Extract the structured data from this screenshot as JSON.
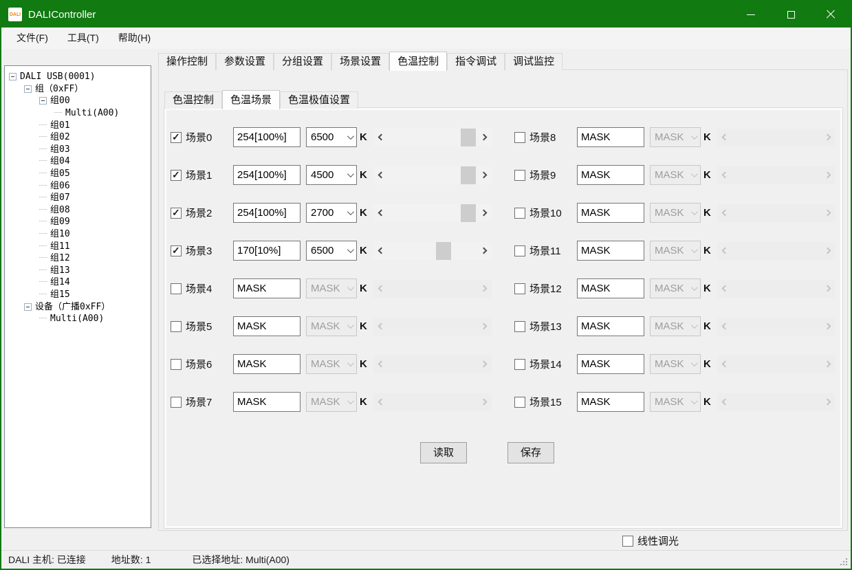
{
  "window": {
    "title": "DALIController",
    "logo_text": "DALI",
    "accent_color": "#117a11"
  },
  "menu": {
    "items": [
      "文件(F)",
      "工具(T)",
      "帮助(H)"
    ]
  },
  "tree": {
    "items": [
      {
        "label": "DALI USB(0001)",
        "depth": 0,
        "expander": true
      },
      {
        "label": "组（0xFF）",
        "depth": 1,
        "expander": true
      },
      {
        "label": "组00",
        "depth": 2,
        "expander": true
      },
      {
        "label": "Multi(A00)",
        "depth": 3,
        "expander": false
      },
      {
        "label": "组01",
        "depth": 2,
        "expander": false
      },
      {
        "label": "组02",
        "depth": 2,
        "expander": false
      },
      {
        "label": "组03",
        "depth": 2,
        "expander": false
      },
      {
        "label": "组04",
        "depth": 2,
        "expander": false
      },
      {
        "label": "组05",
        "depth": 2,
        "expander": false
      },
      {
        "label": "组06",
        "depth": 2,
        "expander": false
      },
      {
        "label": "组07",
        "depth": 2,
        "expander": false
      },
      {
        "label": "组08",
        "depth": 2,
        "expander": false
      },
      {
        "label": "组09",
        "depth": 2,
        "expander": false
      },
      {
        "label": "组10",
        "depth": 2,
        "expander": false
      },
      {
        "label": "组11",
        "depth": 2,
        "expander": false
      },
      {
        "label": "组12",
        "depth": 2,
        "expander": false
      },
      {
        "label": "组13",
        "depth": 2,
        "expander": false
      },
      {
        "label": "组14",
        "depth": 2,
        "expander": false
      },
      {
        "label": "组15",
        "depth": 2,
        "expander": false
      },
      {
        "label": "设备（广播0xFF）",
        "depth": 1,
        "expander": true
      },
      {
        "label": "Multi(A00)",
        "depth": 2,
        "expander": false
      }
    ]
  },
  "tabs": {
    "items": [
      "操作控制",
      "参数设置",
      "分组设置",
      "场景设置",
      "色温控制",
      "指令调试",
      "调试监控"
    ],
    "selected": "色温控制"
  },
  "subtabs": {
    "items": [
      "色温控制",
      "色温场景",
      "色温极值设置"
    ],
    "selected": "色温场景"
  },
  "scene_panel": {
    "kelvin_unit": "K",
    "left": [
      {
        "label": "场景0",
        "checked": true,
        "level": "254[100%]",
        "kelvin": "6500",
        "enabled": true,
        "thumb_pct": 74
      },
      {
        "label": "场景1",
        "checked": true,
        "level": "254[100%]",
        "kelvin": "4500",
        "enabled": true,
        "thumb_pct": 74
      },
      {
        "label": "场景2",
        "checked": true,
        "level": "254[100%]",
        "kelvin": "2700",
        "enabled": true,
        "thumb_pct": 74
      },
      {
        "label": "场景3",
        "checked": true,
        "level": "170[10%]",
        "kelvin": "6500",
        "enabled": true,
        "thumb_pct": 53
      },
      {
        "label": "场景4",
        "checked": false,
        "level": "MASK",
        "kelvin": "MASK",
        "enabled": false
      },
      {
        "label": "场景5",
        "checked": false,
        "level": "MASK",
        "kelvin": "MASK",
        "enabled": false
      },
      {
        "label": "场景6",
        "checked": false,
        "level": "MASK",
        "kelvin": "MASK",
        "enabled": false
      },
      {
        "label": "场景7",
        "checked": false,
        "level": "MASK",
        "kelvin": "MASK",
        "enabled": false
      }
    ],
    "right": [
      {
        "label": "场景8",
        "checked": false,
        "level": "MASK",
        "kelvin": "MASK",
        "enabled": false
      },
      {
        "label": "场景9",
        "checked": false,
        "level": "MASK",
        "kelvin": "MASK",
        "enabled": false
      },
      {
        "label": "场景10",
        "checked": false,
        "level": "MASK",
        "kelvin": "MASK",
        "enabled": false
      },
      {
        "label": "场景11",
        "checked": false,
        "level": "MASK",
        "kelvin": "MASK",
        "enabled": false
      },
      {
        "label": "场景12",
        "checked": false,
        "level": "MASK",
        "kelvin": "MASK",
        "enabled": false
      },
      {
        "label": "场景13",
        "checked": false,
        "level": "MASK",
        "kelvin": "MASK",
        "enabled": false
      },
      {
        "label": "场景14",
        "checked": false,
        "level": "MASK",
        "kelvin": "MASK",
        "enabled": false
      },
      {
        "label": "场景15",
        "checked": false,
        "level": "MASK",
        "kelvin": "MASK",
        "enabled": false
      }
    ],
    "read_button": "读取",
    "save_button": "保存"
  },
  "footer": {
    "linear_dimming_label": "线性调光",
    "linear_dimming_checked": false
  },
  "statusbar": {
    "host": "DALI 主机: 已连接",
    "address_count": "地址数: 1",
    "selected_address": "已选择地址: Multi(A00)"
  }
}
